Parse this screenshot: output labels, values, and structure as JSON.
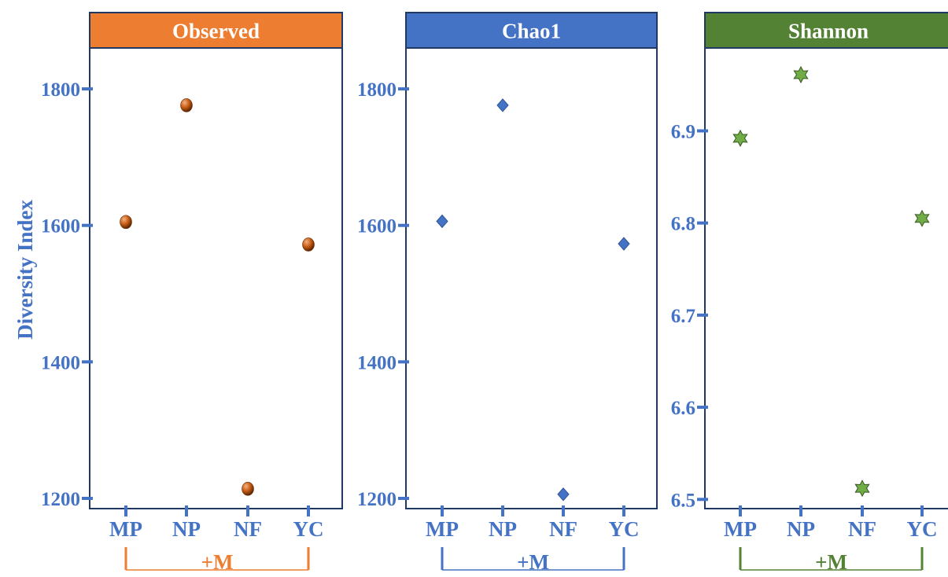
{
  "ylabel": "Diversity Index",
  "colors": {
    "axis": "#4472c4",
    "frame": "#1f3864"
  },
  "chart_data": [
    {
      "type": "scatter",
      "title": "Observed",
      "title_color": "#ed7d31",
      "marker": "sphere",
      "marker_color": "#c55a11",
      "categories": [
        "MP",
        "NP",
        "NF",
        "YC"
      ],
      "values": [
        1605,
        1776,
        1214,
        1572
      ],
      "ylim": [
        1185,
        1860
      ],
      "yticks": [
        1200,
        1400,
        1600,
        1800
      ],
      "tick_decimals": 0,
      "group_label": "+M",
      "group_color": "#ed7d31"
    },
    {
      "type": "scatter",
      "title": "Chao1",
      "title_color": "#4472c4",
      "marker": "diamond",
      "marker_color": "#4472c4",
      "categories": [
        "MP",
        "NP",
        "NF",
        "YC"
      ],
      "values": [
        1606,
        1776,
        1206,
        1573
      ],
      "ylim": [
        1185,
        1860
      ],
      "yticks": [
        1200,
        1400,
        1600,
        1800
      ],
      "tick_decimals": 0,
      "group_label": "+M",
      "group_color": "#4472c4"
    },
    {
      "type": "scatter",
      "title": "Shannon",
      "title_color": "#548235",
      "marker": "star",
      "marker_color": "#70ad47",
      "categories": [
        "MP",
        "NP",
        "NF",
        "YC"
      ],
      "values": [
        6.892,
        6.961,
        6.512,
        6.805
      ],
      "ylim": [
        6.49,
        6.99
      ],
      "yticks": [
        6.5,
        6.6,
        6.7,
        6.8,
        6.9
      ],
      "tick_decimals": 1,
      "group_label": "+M",
      "group_color": "#548235"
    }
  ]
}
